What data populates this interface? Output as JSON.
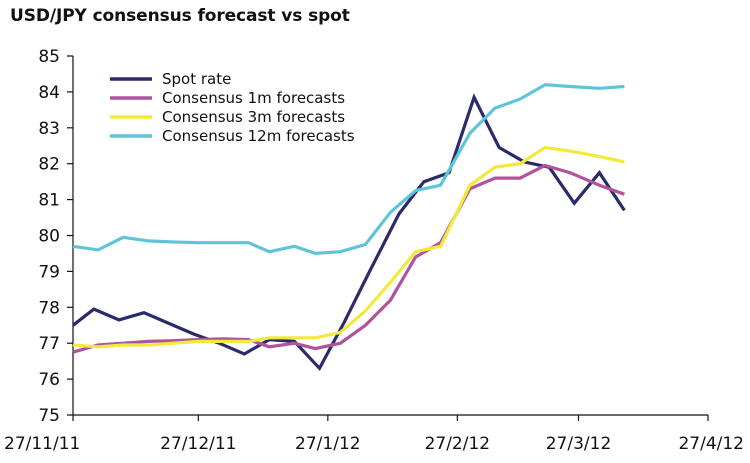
{
  "chart_data": {
    "type": "line",
    "title": "USD/JPY consensus forecast vs spot",
    "xlabel": "",
    "ylabel": "",
    "xlim": [
      "27/11/11",
      "27/4/12"
    ],
    "ylim": [
      75,
      85
    ],
    "y_ticks": [
      "75",
      "76",
      "77",
      "78",
      "79",
      "80",
      "81",
      "82",
      "83",
      "84",
      "85"
    ],
    "x_ticks": [
      {
        "label": "27/11/11",
        "date": "2011-11-27"
      },
      {
        "label": "27/12/11",
        "date": "2011-12-27"
      },
      {
        "label": "27/1/12",
        "date": "2012-01-27"
      },
      {
        "label": "27/2/12",
        "date": "2012-02-27"
      },
      {
        "label": "27/3/12",
        "date": "2012-03-27"
      },
      {
        "label": "27/4/12",
        "date": "2012-04-27"
      }
    ],
    "grid": false,
    "legend_position": "top-left",
    "series": [
      {
        "name": "Spot rate",
        "color": "#2b2a6b",
        "points": [
          {
            "date": "2011-11-27",
            "value": 77.5
          },
          {
            "date": "2011-12-02",
            "value": 77.95
          },
          {
            "date": "2011-12-08",
            "value": 77.65
          },
          {
            "date": "2011-12-14",
            "value": 77.85
          },
          {
            "date": "2011-12-20",
            "value": 77.55
          },
          {
            "date": "2011-12-26",
            "value": 77.25
          },
          {
            "date": "2012-01-01",
            "value": 77.0
          },
          {
            "date": "2012-01-07",
            "value": 76.7
          },
          {
            "date": "2012-01-13",
            "value": 77.1
          },
          {
            "date": "2012-01-19",
            "value": 77.05
          },
          {
            "date": "2012-01-25",
            "value": 76.3
          },
          {
            "date": "2012-01-31",
            "value": 77.6
          },
          {
            "date": "2012-02-06",
            "value": 79.0
          },
          {
            "date": "2012-02-13",
            "value": 80.6
          },
          {
            "date": "2012-02-19",
            "value": 81.5
          },
          {
            "date": "2012-02-25",
            "value": 81.75
          },
          {
            "date": "2012-03-02",
            "value": 83.85
          },
          {
            "date": "2012-03-08",
            "value": 82.45
          },
          {
            "date": "2012-03-14",
            "value": 82.05
          },
          {
            "date": "2012-03-20",
            "value": 81.9
          },
          {
            "date": "2012-03-26",
            "value": 80.9
          },
          {
            "date": "2012-04-01",
            "value": 81.75
          },
          {
            "date": "2012-04-07",
            "value": 80.7
          }
        ]
      },
      {
        "name": "Consensus 1m forecasts",
        "color": "#b0529d",
        "points": [
          {
            "date": "2011-11-27",
            "value": 76.75
          },
          {
            "date": "2011-12-03",
            "value": 76.95
          },
          {
            "date": "2011-12-09",
            "value": 77.0
          },
          {
            "date": "2011-12-15",
            "value": 77.05
          },
          {
            "date": "2011-12-21",
            "value": 77.07
          },
          {
            "date": "2011-12-27",
            "value": 77.1
          },
          {
            "date": "2012-01-02",
            "value": 77.12
          },
          {
            "date": "2012-01-08",
            "value": 77.1
          },
          {
            "date": "2012-01-13",
            "value": 76.9
          },
          {
            "date": "2012-01-19",
            "value": 77.0
          },
          {
            "date": "2012-01-24",
            "value": 76.85
          },
          {
            "date": "2012-01-30",
            "value": 77.0
          },
          {
            "date": "2012-02-05",
            "value": 77.5
          },
          {
            "date": "2012-02-11",
            "value": 78.2
          },
          {
            "date": "2012-02-17",
            "value": 79.4
          },
          {
            "date": "2012-02-23",
            "value": 79.8
          },
          {
            "date": "2012-03-01",
            "value": 81.3
          },
          {
            "date": "2012-03-07",
            "value": 81.6
          },
          {
            "date": "2012-03-13",
            "value": 81.6
          },
          {
            "date": "2012-03-19",
            "value": 81.95
          },
          {
            "date": "2012-03-25",
            "value": 81.75
          },
          {
            "date": "2012-04-01",
            "value": 81.4
          },
          {
            "date": "2012-04-07",
            "value": 81.15
          }
        ]
      },
      {
        "name": "Consensus 3m forecasts",
        "color": "#f2ea3a",
        "points": [
          {
            "date": "2011-11-27",
            "value": 76.95
          },
          {
            "date": "2011-12-03",
            "value": 76.9
          },
          {
            "date": "2011-12-09",
            "value": 76.95
          },
          {
            "date": "2011-12-15",
            "value": 76.95
          },
          {
            "date": "2011-12-21",
            "value": 77.0
          },
          {
            "date": "2011-12-27",
            "value": 77.05
          },
          {
            "date": "2012-01-02",
            "value": 77.05
          },
          {
            "date": "2012-01-08",
            "value": 77.05
          },
          {
            "date": "2012-01-13",
            "value": 77.15
          },
          {
            "date": "2012-01-19",
            "value": 77.15
          },
          {
            "date": "2012-01-24",
            "value": 77.15
          },
          {
            "date": "2012-01-30",
            "value": 77.3
          },
          {
            "date": "2012-02-05",
            "value": 77.9
          },
          {
            "date": "2012-02-11",
            "value": 78.7
          },
          {
            "date": "2012-02-17",
            "value": 79.55
          },
          {
            "date": "2012-02-23",
            "value": 79.7
          },
          {
            "date": "2012-03-01",
            "value": 81.4
          },
          {
            "date": "2012-03-07",
            "value": 81.9
          },
          {
            "date": "2012-03-13",
            "value": 82.0
          },
          {
            "date": "2012-03-19",
            "value": 82.45
          },
          {
            "date": "2012-03-25",
            "value": 82.35
          },
          {
            "date": "2012-04-01",
            "value": 82.2
          },
          {
            "date": "2012-04-07",
            "value": 82.05
          }
        ]
      },
      {
        "name": "Consensus 12m forecasts",
        "color": "#5ec5d8",
        "points": [
          {
            "date": "2011-11-27",
            "value": 79.7
          },
          {
            "date": "2011-12-03",
            "value": 79.6
          },
          {
            "date": "2011-12-09",
            "value": 79.95
          },
          {
            "date": "2011-12-15",
            "value": 79.85
          },
          {
            "date": "2011-12-21",
            "value": 79.82
          },
          {
            "date": "2011-12-27",
            "value": 79.8
          },
          {
            "date": "2012-01-02",
            "value": 79.8
          },
          {
            "date": "2012-01-08",
            "value": 79.8
          },
          {
            "date": "2012-01-13",
            "value": 79.55
          },
          {
            "date": "2012-01-19",
            "value": 79.7
          },
          {
            "date": "2012-01-24",
            "value": 79.5
          },
          {
            "date": "2012-01-30",
            "value": 79.55
          },
          {
            "date": "2012-02-05",
            "value": 79.75
          },
          {
            "date": "2012-02-11",
            "value": 80.65
          },
          {
            "date": "2012-02-17",
            "value": 81.25
          },
          {
            "date": "2012-02-23",
            "value": 81.4
          },
          {
            "date": "2012-03-01",
            "value": 82.85
          },
          {
            "date": "2012-03-07",
            "value": 83.55
          },
          {
            "date": "2012-03-13",
            "value": 83.8
          },
          {
            "date": "2012-03-19",
            "value": 84.2
          },
          {
            "date": "2012-03-25",
            "value": 84.15
          },
          {
            "date": "2012-04-01",
            "value": 84.1
          },
          {
            "date": "2012-04-07",
            "value": 84.15
          }
        ]
      }
    ]
  }
}
